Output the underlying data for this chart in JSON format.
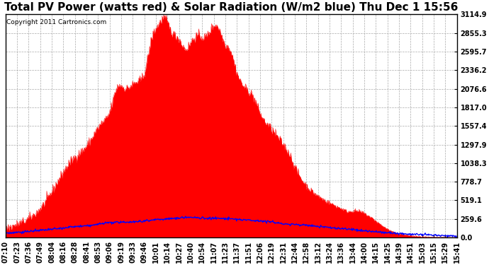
{
  "title": "Total PV Power (watts red) & Solar Radiation (W/m2 blue) Thu Dec 1 15:56",
  "copyright": "Copyright 2011 Cartronics.com",
  "y_ticks": [
    0.0,
    259.6,
    519.1,
    778.7,
    1038.3,
    1297.9,
    1557.4,
    1817.0,
    2076.6,
    2336.2,
    2595.7,
    2855.3,
    3114.9
  ],
  "x_labels": [
    "07:10",
    "07:23",
    "07:36",
    "07:49",
    "08:04",
    "08:16",
    "08:28",
    "08:41",
    "08:53",
    "09:06",
    "09:19",
    "09:33",
    "09:46",
    "10:01",
    "10:14",
    "10:27",
    "10:40",
    "10:54",
    "11:07",
    "11:23",
    "11:37",
    "11:51",
    "12:06",
    "12:19",
    "12:31",
    "12:44",
    "12:58",
    "13:12",
    "13:24",
    "13:36",
    "13:44",
    "14:00",
    "14:15",
    "14:25",
    "14:39",
    "14:51",
    "15:03",
    "15:15",
    "15:29",
    "15:41"
  ],
  "background_color": "#ffffff",
  "fill_color": "#ff0000",
  "line_color": "#0000ff",
  "grid_color": "#aaaaaa",
  "title_fontsize": 11,
  "label_fontsize": 7,
  "ymax": 3114.9,
  "solar_rad_max": 300
}
